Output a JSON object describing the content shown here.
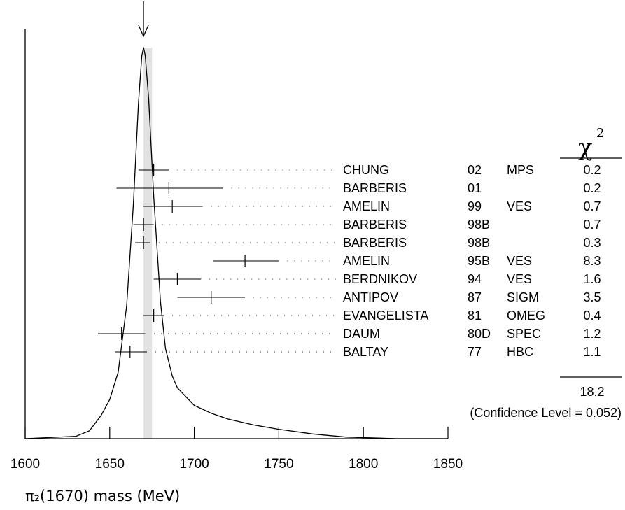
{
  "chart_data": {
    "type": "ideogram",
    "xlabel": "π₂(1670) mass (MeV)",
    "xlim": [
      1600,
      1850
    ],
    "x_ticks": [
      "1600",
      "1650",
      "1700",
      "1750",
      "1800",
      "1850"
    ],
    "average": 1672.4,
    "average_band": [
      1670,
      1675
    ],
    "peak_curve": [
      [
        1600,
        0.0
      ],
      [
        1630,
        0.006
      ],
      [
        1638,
        0.02
      ],
      [
        1645,
        0.06
      ],
      [
        1650,
        0.1
      ],
      [
        1655,
        0.17
      ],
      [
        1660,
        0.34
      ],
      [
        1664,
        0.6
      ],
      [
        1667,
        0.86
      ],
      [
        1669,
        0.98
      ],
      [
        1670,
        1.0
      ],
      [
        1671,
        0.98
      ],
      [
        1673,
        0.87
      ],
      [
        1676,
        0.62
      ],
      [
        1680,
        0.35
      ],
      [
        1683,
        0.23
      ],
      [
        1687,
        0.16
      ],
      [
        1690,
        0.13
      ],
      [
        1700,
        0.085
      ],
      [
        1710,
        0.065
      ],
      [
        1720,
        0.05
      ],
      [
        1735,
        0.035
      ],
      [
        1750,
        0.024
      ],
      [
        1770,
        0.012
      ],
      [
        1790,
        0.004
      ],
      [
        1820,
        0.0
      ],
      [
        1850,
        0.0
      ]
    ],
    "chi2_header": "χ",
    "chi2_exponent": "2",
    "measurements": [
      {
        "author": "CHUNG",
        "year": "02",
        "tech": "MPS",
        "chi2": "0.2",
        "value": 1676,
        "lo": 1667,
        "hi": 1685
      },
      {
        "author": "BARBERIS",
        "year": "01",
        "tech": "",
        "chi2": "0.2",
        "value": 1685,
        "lo": 1654,
        "hi": 1717
      },
      {
        "author": "AMELIN",
        "year": "99",
        "tech": "VES",
        "chi2": "0.7",
        "value": 1687,
        "lo": 1670,
        "hi": 1705
      },
      {
        "author": "BARBERIS",
        "year": "98B",
        "tech": "",
        "chi2": "0.7",
        "value": 1670,
        "lo": 1664,
        "hi": 1676
      },
      {
        "author": "BARBERIS",
        "year": "98B",
        "tech": "",
        "chi2": "0.3",
        "value": 1670,
        "lo": 1665,
        "hi": 1674
      },
      {
        "author": "AMELIN",
        "year": "95B",
        "tech": "VES",
        "chi2": "8.3",
        "value": 1730,
        "lo": 1711,
        "hi": 1750
      },
      {
        "author": "BERDNIKOV",
        "year": "94",
        "tech": "VES",
        "chi2": "1.6",
        "value": 1690,
        "lo": 1676,
        "hi": 1704
      },
      {
        "author": "ANTIPOV",
        "year": "87",
        "tech": "SIGM",
        "chi2": "3.5",
        "value": 1710,
        "lo": 1690,
        "hi": 1730
      },
      {
        "author": "EVANGELISTA",
        "year": "81",
        "tech": "OMEG",
        "chi2": "0.4",
        "value": 1676,
        "lo": 1670,
        "hi": 1682
      },
      {
        "author": "DAUM",
        "year": "80D",
        "tech": "SPEC",
        "chi2": "1.2",
        "value": 1657,
        "lo": 1643,
        "hi": 1671
      },
      {
        "author": "BALTAY",
        "year": "77",
        "tech": "HBC",
        "chi2": "1.1",
        "value": 1662,
        "lo": 1653,
        "hi": 1672
      }
    ],
    "chi2_total": "18.2",
    "confidence_level": "(Confidence Level = 0.052)"
  }
}
